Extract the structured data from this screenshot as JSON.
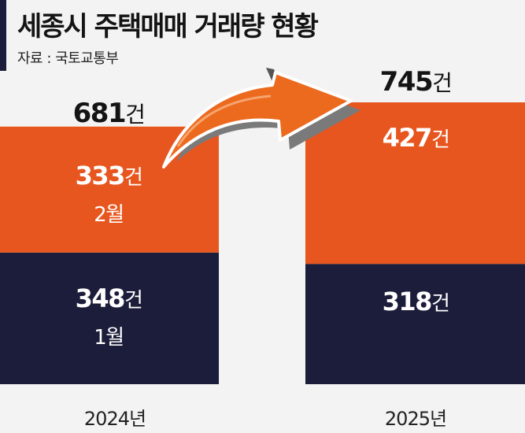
{
  "title": "세종시 주택매매 거래량 현황",
  "source": "자료 : 국토교통부",
  "colors": {
    "top_segment": "#e8561f",
    "bottom_segment": "#1c1d3a",
    "arrow": "#ec6a1e"
  },
  "chart_data": {
    "type": "bar",
    "stacked": true,
    "categories": [
      "2024년",
      "2025년"
    ],
    "series": [
      {
        "name": "1월",
        "values": [
          348,
          318
        ]
      },
      {
        "name": "2월",
        "values": [
          333,
          427
        ]
      }
    ],
    "totals": [
      681,
      745
    ],
    "total_labels": {
      "num": [
        "681",
        "745"
      ],
      "unit": "건"
    },
    "segment_labels": {
      "bottom": [
        "348",
        "318"
      ],
      "top": [
        "333",
        "427"
      ],
      "unit": "건"
    },
    "month_labels": [
      "1월",
      "2월"
    ]
  }
}
